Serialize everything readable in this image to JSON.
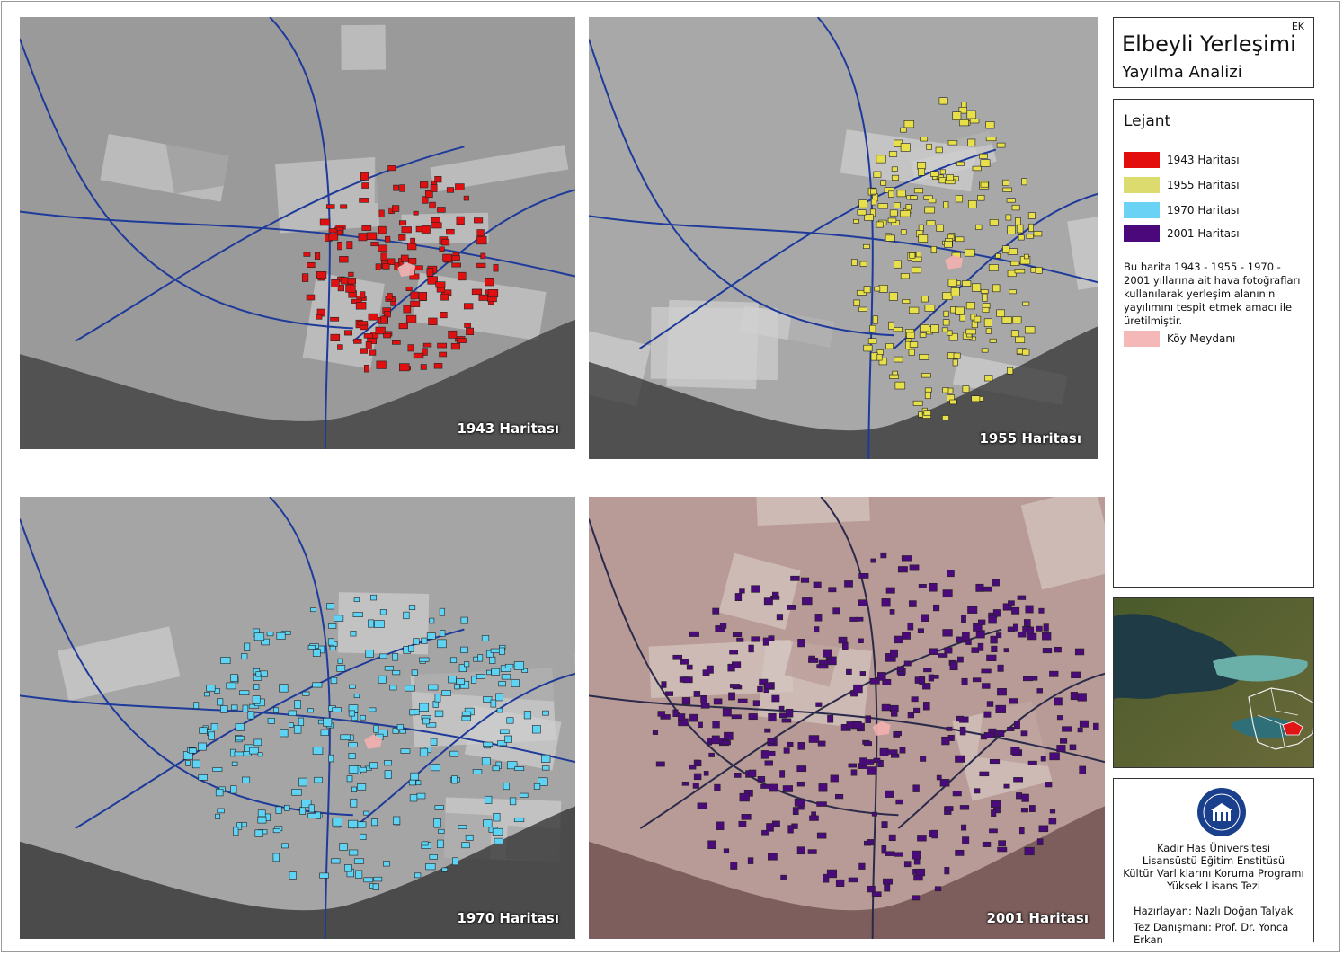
{
  "maps": [
    {
      "label": "1943 Haritası",
      "building_color": "#e01010"
    },
    {
      "label": "1955 Haritası",
      "building_color": "#e8e04a"
    },
    {
      "label": "1970 Haritası",
      "building_color": "#5fd3f3"
    },
    {
      "label": "2001 Haritası",
      "building_color": "#4a0a7a"
    }
  ],
  "title_box": {
    "ek": "EK",
    "title": "Elbeyli Yerleşimi",
    "subtitle": "Yayılma Analizi"
  },
  "legend": {
    "title": "Lejant",
    "items": [
      {
        "label": "1943 Haritası",
        "color": "#e30d0d"
      },
      {
        "label": "1955 Haritası",
        "color": "#dcdc6e"
      },
      {
        "label": "1970 Haritası",
        "color": "#6ad3f5"
      },
      {
        "label": "2001 Haritası",
        "color": "#4a087a"
      }
    ],
    "description": "Bu harita 1943 - 1955 - 1970 - 2001 yıllarına ait hava fotoğrafları kullanılarak yerleşim alanının yayılımını tespit etmek amacı ile üretilmiştir.",
    "square": {
      "label": "Köy Meydanı",
      "color": "#f4b8b8"
    }
  },
  "credits": {
    "line1": "Kadir Has Üniversitesi",
    "line2": "Lisansüstü Eğitim Enstitüsü",
    "line3": "Kültür Varlıklarını Koruma Programı",
    "line4": "Yüksek Lisans Tezi",
    "prepared": "Hazırlayan: Nazlı Doğan Talyak",
    "advisor": "Tez Danışmanı: Prof. Dr. Yonca Erkan"
  }
}
